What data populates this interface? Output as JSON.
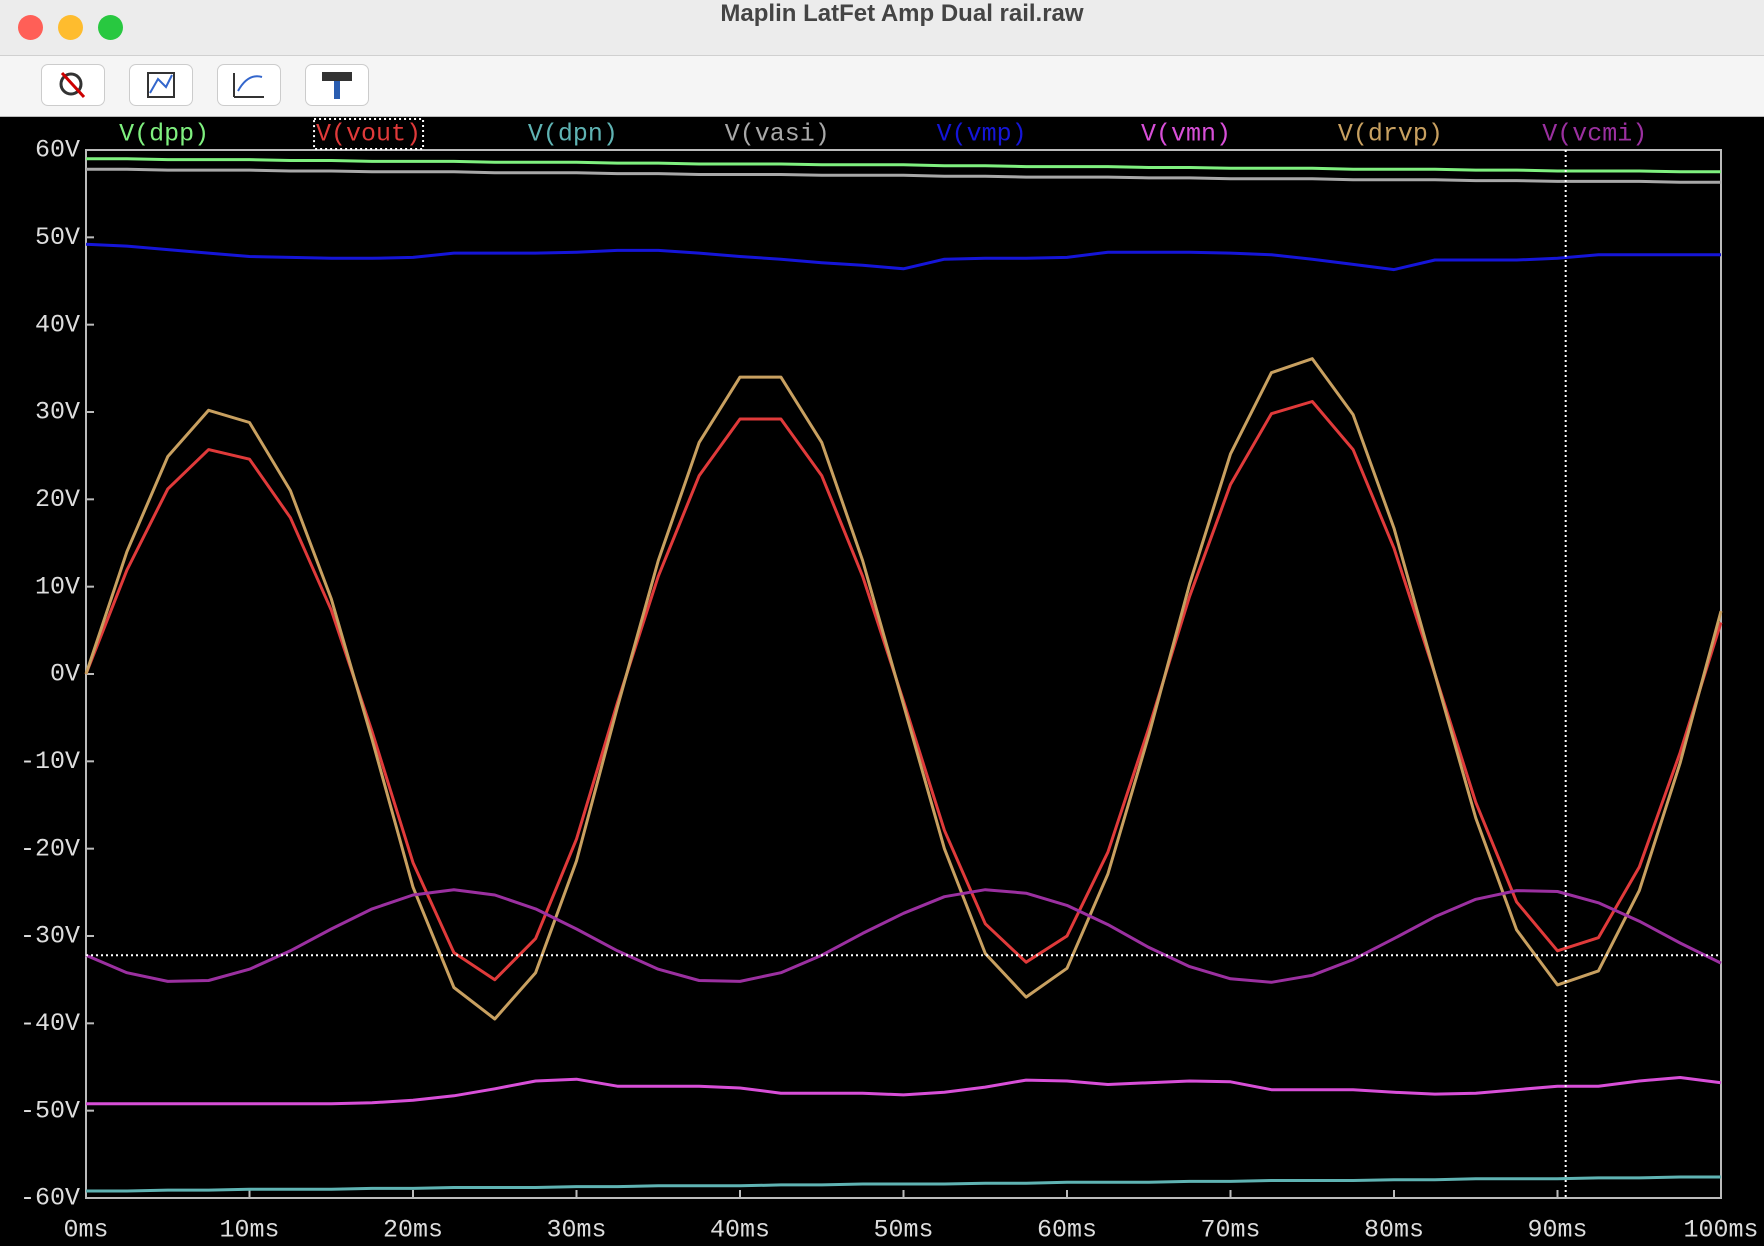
{
  "window": {
    "title": "Maplin LatFet Amp Dual rail.raw"
  },
  "chart_data": {
    "type": "line",
    "grid": false,
    "x": [
      0,
      2.5,
      5,
      7.5,
      10,
      12.5,
      15,
      17.5,
      20,
      22.5,
      25,
      27.5,
      30,
      32.5,
      35,
      37.5,
      40,
      42.5,
      45,
      47.5,
      50,
      52.5,
      55,
      57.5,
      60,
      62.5,
      65,
      67.5,
      70,
      72.5,
      75,
      77.5,
      80,
      82.5,
      85,
      87.5,
      90,
      92.5,
      95,
      97.5,
      100
    ],
    "xlim": [
      0,
      100
    ],
    "xticks": [
      {
        "value": 0,
        "label": "0ms"
      },
      {
        "value": 10,
        "label": "10ms"
      },
      {
        "value": 20,
        "label": "20ms"
      },
      {
        "value": 30,
        "label": "30ms"
      },
      {
        "value": 40,
        "label": "40ms"
      },
      {
        "value": 50,
        "label": "50ms"
      },
      {
        "value": 60,
        "label": "60ms"
      },
      {
        "value": 70,
        "label": "70ms"
      },
      {
        "value": 80,
        "label": "80ms"
      },
      {
        "value": 90,
        "label": "90ms"
      },
      {
        "value": 100,
        "label": "100ms"
      }
    ],
    "ylim": [
      -60,
      60
    ],
    "yticks": [
      {
        "value": 60,
        "label": "60V"
      },
      {
        "value": 50,
        "label": "50V"
      },
      {
        "value": 40,
        "label": "40V"
      },
      {
        "value": 30,
        "label": "30V"
      },
      {
        "value": 20,
        "label": "20V"
      },
      {
        "value": 10,
        "label": "10V"
      },
      {
        "value": 0,
        "label": "0V"
      },
      {
        "value": -10,
        "label": "-10V"
      },
      {
        "value": -20,
        "label": "-20V"
      },
      {
        "value": -30,
        "label": "-30V"
      },
      {
        "value": -40,
        "label": "-40V"
      },
      {
        "value": -50,
        "label": "-50V"
      },
      {
        "value": -60,
        "label": "-60V"
      }
    ],
    "cursor_x": 90.5,
    "cursor_y": -32.2,
    "series": [
      {
        "name": "V(dpp)",
        "color": "#7ff07f",
        "values": [
          59.0,
          59.0,
          58.9,
          58.9,
          58.9,
          58.8,
          58.8,
          58.7,
          58.7,
          58.7,
          58.6,
          58.6,
          58.6,
          58.5,
          58.5,
          58.4,
          58.4,
          58.4,
          58.3,
          58.3,
          58.3,
          58.2,
          58.2,
          58.1,
          58.1,
          58.1,
          58.0,
          58.0,
          57.9,
          57.9,
          57.9,
          57.8,
          57.8,
          57.8,
          57.7,
          57.7,
          57.6,
          57.6,
          57.6,
          57.5,
          57.5
        ]
      },
      {
        "name": "V(vout)",
        "color": "#e03a3a",
        "selected": true,
        "values": [
          0,
          11.9,
          21.2,
          25.7,
          24.6,
          17.9,
          7.3,
          -6.6,
          -21.6,
          -31.9,
          -35.0,
          -30.3,
          -18.9,
          -3.3,
          11.2,
          22.7,
          29.2,
          29.2,
          22.7,
          11.2,
          -3.1,
          -17.9,
          -28.6,
          -33.0,
          -30.0,
          -20.4,
          -6.2,
          8.9,
          21.7,
          29.8,
          31.2,
          25.7,
          14.4,
          0,
          -14.7,
          -26.1,
          -31.7,
          -30.2,
          -22.1,
          -9.0,
          5.9
        ]
      },
      {
        "name": "V(dpn)",
        "color": "#5fb3b3",
        "values": [
          -59.2,
          -59.2,
          -59.1,
          -59.1,
          -59.0,
          -59.0,
          -59.0,
          -58.9,
          -58.9,
          -58.8,
          -58.8,
          -58.8,
          -58.7,
          -58.7,
          -58.6,
          -58.6,
          -58.6,
          -58.5,
          -58.5,
          -58.4,
          -58.4,
          -58.4,
          -58.3,
          -58.3,
          -58.2,
          -58.2,
          -58.2,
          -58.1,
          -58.1,
          -58.0,
          -58.0,
          -58.0,
          -57.9,
          -57.9,
          -57.8,
          -57.8,
          -57.8,
          -57.7,
          -57.7,
          -57.6,
          -57.6
        ]
      },
      {
        "name": "V(vasi)",
        "color": "#a8a8a8",
        "values": [
          57.8,
          57.8,
          57.7,
          57.7,
          57.7,
          57.6,
          57.6,
          57.5,
          57.5,
          57.5,
          57.4,
          57.4,
          57.4,
          57.3,
          57.3,
          57.2,
          57.2,
          57.2,
          57.1,
          57.1,
          57.1,
          57.0,
          57.0,
          56.9,
          56.9,
          56.9,
          56.8,
          56.8,
          56.7,
          56.7,
          56.7,
          56.6,
          56.6,
          56.6,
          56.5,
          56.5,
          56.4,
          56.4,
          56.4,
          56.3,
          56.3
        ]
      },
      {
        "name": "V(vmp)",
        "color": "#1515d8",
        "values": [
          49.2,
          49.0,
          48.6,
          48.2,
          47.8,
          47.7,
          47.6,
          47.6,
          47.7,
          48.2,
          48.2,
          48.2,
          48.3,
          48.5,
          48.5,
          48.2,
          47.8,
          47.5,
          47.1,
          46.8,
          46.4,
          47.5,
          47.6,
          47.6,
          47.7,
          48.3,
          48.3,
          48.3,
          48.2,
          48.0,
          47.5,
          46.9,
          46.3,
          47.4,
          47.4,
          47.4,
          47.6,
          48.0,
          48.0,
          48.0,
          48.0
        ]
      },
      {
        "name": "V(vmn)",
        "color": "#d84fd8",
        "values": [
          -49.2,
          -49.2,
          -49.2,
          -49.2,
          -49.2,
          -49.2,
          -49.2,
          -49.1,
          -48.8,
          -48.3,
          -47.5,
          -46.6,
          -46.4,
          -47.2,
          -47.2,
          -47.2,
          -47.4,
          -48.0,
          -48.0,
          -48.0,
          -48.2,
          -47.9,
          -47.3,
          -46.5,
          -46.6,
          -47.0,
          -46.8,
          -46.6,
          -46.7,
          -47.6,
          -47.6,
          -47.6,
          -47.9,
          -48.1,
          -48.0,
          -47.6,
          -47.2,
          -47.2,
          -46.6,
          -46.2,
          -46.8
        ]
      },
      {
        "name": "V(drvp)",
        "color": "#c8a060",
        "values": [
          0,
          14.0,
          24.9,
          30.2,
          28.8,
          21.0,
          8.6,
          -7.5,
          -24.4,
          -35.9,
          -39.5,
          -34.2,
          -21.4,
          -3.8,
          13.0,
          26.5,
          34.0,
          34.0,
          26.5,
          13.0,
          -3.5,
          -20.0,
          -32.0,
          -37.0,
          -33.7,
          -22.9,
          -7.0,
          10.3,
          25.2,
          34.5,
          36.1,
          29.7,
          16.7,
          0,
          -16.5,
          -29.3,
          -35.6,
          -34.0,
          -24.8,
          -10.2,
          7.2
        ]
      },
      {
        "name": "V(vcmi)",
        "color": "#9b30a0",
        "values": [
          -32.2,
          -34.2,
          -35.2,
          -35.1,
          -33.8,
          -31.7,
          -29.2,
          -26.9,
          -25.3,
          -24.7,
          -25.3,
          -26.9,
          -29.2,
          -31.7,
          -33.8,
          -35.1,
          -35.2,
          -34.2,
          -32.2,
          -29.7,
          -27.4,
          -25.5,
          -24.7,
          -25.1,
          -26.5,
          -28.7,
          -31.3,
          -33.5,
          -34.9,
          -35.3,
          -34.5,
          -32.7,
          -30.3,
          -27.8,
          -25.8,
          -24.8,
          -24.9,
          -26.2,
          -28.3,
          -30.8,
          -33.1
        ]
      }
    ]
  }
}
